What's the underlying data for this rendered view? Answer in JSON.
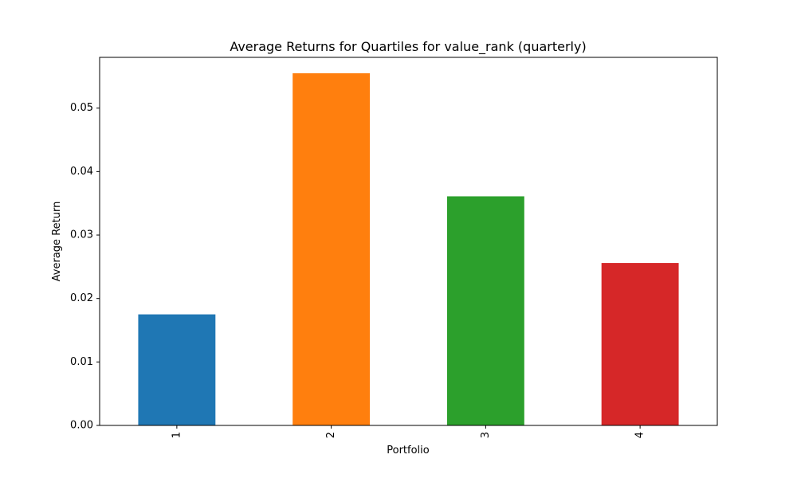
{
  "chart_data": {
    "type": "bar",
    "title": "Average Returns for Quartiles for value_rank (quarterly)",
    "xlabel": "Portfolio",
    "ylabel": "Average Return",
    "categories": [
      "1",
      "2",
      "3",
      "4"
    ],
    "values": [
      0.0175,
      0.0555,
      0.0361,
      0.0256
    ],
    "colors": [
      "#1f77b4",
      "#ff7f0e",
      "#2ca02c",
      "#d62728"
    ],
    "ylim": [
      0,
      0.058
    ],
    "yticks": [
      0.0,
      0.01,
      0.02,
      0.03,
      0.04,
      0.05
    ],
    "ytick_labels": [
      "0.00",
      "0.01",
      "0.02",
      "0.03",
      "0.04",
      "0.05"
    ],
    "xtick_rotation": "vertical",
    "grid": false,
    "legend": false
  }
}
